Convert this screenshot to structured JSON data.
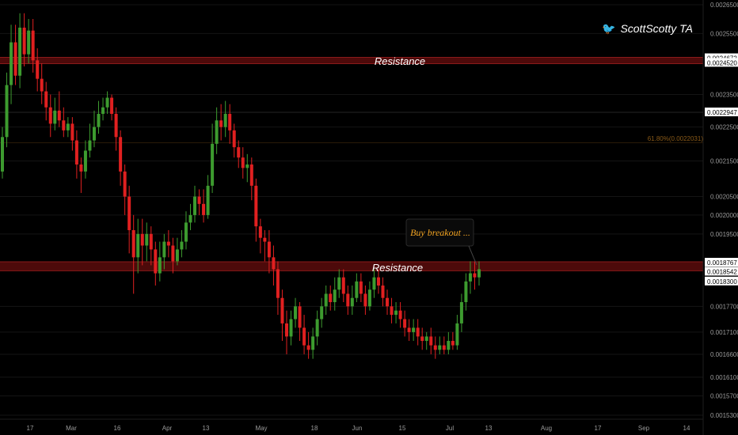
{
  "watermark": {
    "icon": "twitter-bird-icon",
    "handle": "ScottScotty TA"
  },
  "annotations": {
    "resistance_upper": "Resistance",
    "resistance_lower": "Resistance",
    "callout": "Buy breakout ...",
    "fib": "61.80%(0.0022031)"
  },
  "colors": {
    "background": "#000000",
    "up": "#3d9b2f",
    "down": "#e02020",
    "zone": "#5a0c0c",
    "callout_text": "#f5a623",
    "fib": "#8a5a18"
  },
  "chart_data": {
    "type": "candlestick",
    "y_scale": "log",
    "ylim": [
      0.00153,
      0.00265
    ],
    "y_ticks": [
      0.00265,
      0.00255,
      0.00235,
      0.00225,
      0.00215,
      0.00205,
      0.002,
      0.00195,
      0.00177,
      0.00171,
      0.00166,
      0.00161,
      0.00157,
      0.00153
    ],
    "y_tick_labels": [
      "0.0026500",
      "0.0025500",
      "0.0023500",
      "0.0022500",
      "0.0021500",
      "0.0020500",
      "0.0020000",
      "0.0019500",
      "0.0017700",
      "0.0017100",
      "0.0016600",
      "0.0016100",
      "0.0015700",
      "0.0015300"
    ],
    "price_labels": [
      {
        "value": 0.0024672,
        "text": "0.0024672"
      },
      {
        "value": 0.002452,
        "text": "0.0024520"
      },
      {
        "value": 0.0022947,
        "text": "0.0022947"
      },
      {
        "value": 0.0018767,
        "text": "0.0018767"
      },
      {
        "value": 0.0018542,
        "text": "0.0018542"
      },
      {
        "value": 0.00183,
        "text": "0.0018300"
      }
    ],
    "x_labels": [
      "17",
      "Mar",
      "16",
      "Apr",
      "13",
      "May",
      "18",
      "Jun",
      "15",
      "Jul",
      "13",
      "Aug",
      "17",
      "Sep",
      "14"
    ],
    "resistance_zones": [
      [
        0.002452,
        0.0024672
      ],
      [
        0.0018542,
        0.0018767
      ]
    ],
    "fib_level": 0.0022031,
    "candles": [
      [
        0.00212,
        0.00222,
        0.0021,
        0.00225
      ],
      [
        0.00222,
        0.00238,
        0.00219,
        0.00242
      ],
      [
        0.00238,
        0.00252,
        0.00232,
        0.00258
      ],
      [
        0.00252,
        0.00241,
        0.00238,
        0.00258
      ],
      [
        0.00241,
        0.00257,
        0.00237,
        0.00262
      ],
      [
        0.00257,
        0.00248,
        0.00244,
        0.00262
      ],
      [
        0.00248,
        0.00256,
        0.00245,
        0.0026
      ],
      [
        0.00256,
        0.00246,
        0.00242,
        0.0026
      ],
      [
        0.00246,
        0.0024,
        0.00236,
        0.0025
      ],
      [
        0.0024,
        0.00236,
        0.00232,
        0.00245
      ],
      [
        0.00236,
        0.00231,
        0.00227,
        0.00239
      ],
      [
        0.00231,
        0.00226,
        0.00222,
        0.00235
      ],
      [
        0.00226,
        0.0023,
        0.00224,
        0.00234
      ],
      [
        0.0023,
        0.00227,
        0.00225,
        0.00236
      ],
      [
        0.00227,
        0.00224,
        0.00222,
        0.00231
      ],
      [
        0.00224,
        0.00226,
        0.00222,
        0.00228
      ],
      [
        0.00226,
        0.00221,
        0.00218,
        0.00228
      ],
      [
        0.00221,
        0.00214,
        0.0021,
        0.00224
      ],
      [
        0.00214,
        0.00212,
        0.00206,
        0.00216
      ],
      [
        0.00212,
        0.00218,
        0.0021,
        0.00221
      ],
      [
        0.00218,
        0.00221,
        0.00216,
        0.00226
      ],
      [
        0.00221,
        0.00225,
        0.00219,
        0.0023
      ],
      [
        0.00225,
        0.00229,
        0.00223,
        0.00233
      ],
      [
        0.00229,
        0.00231,
        0.00227,
        0.00234
      ],
      [
        0.00231,
        0.00234,
        0.00229,
        0.00236
      ],
      [
        0.00234,
        0.00229,
        0.00227,
        0.00235
      ],
      [
        0.00229,
        0.00222,
        0.00218,
        0.00231
      ],
      [
        0.00222,
        0.00212,
        0.00208,
        0.00224
      ],
      [
        0.00212,
        0.00205,
        0.002,
        0.00214
      ],
      [
        0.00205,
        0.00196,
        0.0019,
        0.00208
      ],
      [
        0.00196,
        0.00189,
        0.0018,
        0.002
      ],
      [
        0.00189,
        0.00195,
        0.00185,
        0.00199
      ],
      [
        0.00195,
        0.00192,
        0.00187,
        0.00199
      ],
      [
        0.00192,
        0.00195,
        0.00188,
        0.00198
      ],
      [
        0.00195,
        0.00191,
        0.00187,
        0.00197
      ],
      [
        0.00191,
        0.00185,
        0.00182,
        0.00193
      ],
      [
        0.00185,
        0.00189,
        0.00183,
        0.00193
      ],
      [
        0.00189,
        0.00193,
        0.00186,
        0.00195
      ],
      [
        0.00193,
        0.00192,
        0.00189,
        0.00196
      ],
      [
        0.00192,
        0.00188,
        0.00185,
        0.00194
      ],
      [
        0.00188,
        0.00191,
        0.00187,
        0.00194
      ],
      [
        0.00191,
        0.00193,
        0.00189,
        0.00196
      ],
      [
        0.00193,
        0.00198,
        0.00191,
        0.00201
      ],
      [
        0.00198,
        0.002,
        0.00196,
        0.00203
      ],
      [
        0.002,
        0.00205,
        0.00198,
        0.00208
      ],
      [
        0.00205,
        0.00203,
        0.002,
        0.00207
      ],
      [
        0.00203,
        0.002,
        0.00198,
        0.00207
      ],
      [
        0.002,
        0.00208,
        0.00199,
        0.00211
      ],
      [
        0.00208,
        0.0022,
        0.00206,
        0.00226
      ],
      [
        0.0022,
        0.00227,
        0.00217,
        0.00231
      ],
      [
        0.00227,
        0.00225,
        0.00221,
        0.00232
      ],
      [
        0.00225,
        0.00229,
        0.00222,
        0.00233
      ],
      [
        0.00229,
        0.00224,
        0.0022,
        0.00232
      ],
      [
        0.00224,
        0.00219,
        0.00216,
        0.00226
      ],
      [
        0.00219,
        0.00216,
        0.00213,
        0.00221
      ],
      [
        0.00216,
        0.00213,
        0.0021,
        0.00219
      ],
      [
        0.00213,
        0.00214,
        0.00209,
        0.00217
      ],
      [
        0.00214,
        0.00208,
        0.00204,
        0.00216
      ],
      [
        0.00208,
        0.00197,
        0.00193,
        0.0021
      ],
      [
        0.00197,
        0.00194,
        0.0019,
        0.00199
      ],
      [
        0.00194,
        0.00193,
        0.00188,
        0.00196
      ],
      [
        0.00193,
        0.00189,
        0.00185,
        0.00196
      ],
      [
        0.00189,
        0.00186,
        0.00182,
        0.00192
      ],
      [
        0.00186,
        0.00179,
        0.00175,
        0.00188
      ],
      [
        0.00179,
        0.00173,
        0.00169,
        0.00181
      ],
      [
        0.00173,
        0.0017,
        0.00166,
        0.00176
      ],
      [
        0.0017,
        0.00174,
        0.00168,
        0.00176
      ],
      [
        0.00174,
        0.00177,
        0.00172,
        0.00179
      ],
      [
        0.00177,
        0.00172,
        0.00169,
        0.00178
      ],
      [
        0.00172,
        0.00168,
        0.00166,
        0.00175
      ],
      [
        0.00168,
        0.00167,
        0.00165,
        0.00171
      ],
      [
        0.00167,
        0.0017,
        0.00165,
        0.00172
      ],
      [
        0.0017,
        0.00174,
        0.00168,
        0.00176
      ],
      [
        0.00174,
        0.00177,
        0.00172,
        0.00179
      ],
      [
        0.00177,
        0.0018,
        0.00175,
        0.00182
      ],
      [
        0.0018,
        0.00178,
        0.00176,
        0.00182
      ],
      [
        0.00178,
        0.00181,
        0.00176,
        0.00184
      ],
      [
        0.00181,
        0.00184,
        0.00179,
        0.00186
      ],
      [
        0.00184,
        0.0018,
        0.00178,
        0.00186
      ],
      [
        0.0018,
        0.00177,
        0.00175,
        0.00182
      ],
      [
        0.00177,
        0.00179,
        0.00175,
        0.00182
      ],
      [
        0.00179,
        0.00183,
        0.00178,
        0.00185
      ],
      [
        0.00183,
        0.0018,
        0.00178,
        0.00185
      ],
      [
        0.0018,
        0.00177,
        0.00175,
        0.00182
      ],
      [
        0.00177,
        0.00181,
        0.00176,
        0.00183
      ],
      [
        0.00181,
        0.00184,
        0.00179,
        0.00186
      ],
      [
        0.00184,
        0.00182,
        0.0018,
        0.00186
      ],
      [
        0.00182,
        0.00179,
        0.00177,
        0.00184
      ],
      [
        0.00179,
        0.00177,
        0.00175,
        0.00181
      ],
      [
        0.00177,
        0.00175,
        0.00173,
        0.00179
      ],
      [
        0.00175,
        0.00176,
        0.00173,
        0.00178
      ],
      [
        0.00176,
        0.00174,
        0.00172,
        0.00178
      ],
      [
        0.00174,
        0.00172,
        0.0017,
        0.00176
      ],
      [
        0.00172,
        0.00171,
        0.00169,
        0.00174
      ],
      [
        0.00171,
        0.00172,
        0.00169,
        0.00174
      ],
      [
        0.00172,
        0.0017,
        0.00168,
        0.00174
      ],
      [
        0.0017,
        0.00169,
        0.00167,
        0.00172
      ],
      [
        0.00169,
        0.0017,
        0.00167,
        0.00171
      ],
      [
        0.0017,
        0.00168,
        0.00166,
        0.00172
      ],
      [
        0.00168,
        0.00167,
        0.00165,
        0.0017
      ],
      [
        0.00167,
        0.00168,
        0.00166,
        0.0017
      ],
      [
        0.00168,
        0.00167,
        0.00166,
        0.0017
      ],
      [
        0.00167,
        0.00169,
        0.00166,
        0.00171
      ],
      [
        0.00169,
        0.00168,
        0.00167,
        0.00171
      ],
      [
        0.00168,
        0.00173,
        0.00167,
        0.00175
      ],
      [
        0.00173,
        0.00178,
        0.00171,
        0.0018
      ],
      [
        0.00178,
        0.00183,
        0.00176,
        0.00185
      ],
      [
        0.00183,
        0.00185,
        0.0018,
        0.00188
      ],
      [
        0.00185,
        0.00184,
        0.00181,
        0.00188
      ],
      [
        0.00184,
        0.00186,
        0.00182,
        0.00188
      ]
    ]
  }
}
